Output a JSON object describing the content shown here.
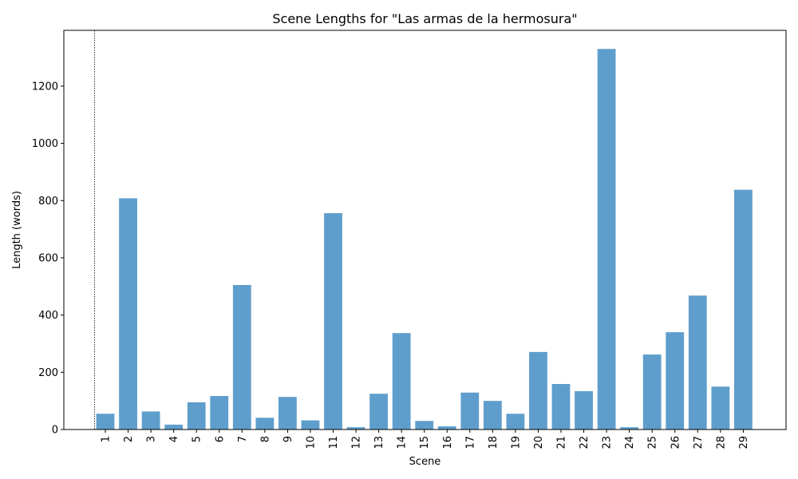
{
  "chart_data": {
    "type": "bar",
    "title": "Scene Lengths for \"Las armas de la hermosura\"",
    "xlabel": "Scene",
    "ylabel": "Length (words)",
    "categories": [
      "1",
      "2",
      "3",
      "4",
      "5",
      "6",
      "7",
      "8",
      "9",
      "10",
      "11",
      "12",
      "13",
      "14",
      "15",
      "16",
      "17",
      "18",
      "19",
      "20",
      "21",
      "22",
      "23",
      "24",
      "25",
      "26",
      "27",
      "28",
      "29"
    ],
    "values": [
      55,
      808,
      63,
      17,
      95,
      117,
      505,
      41,
      114,
      32,
      756,
      8,
      125,
      337,
      30,
      11,
      129,
      100,
      55,
      271,
      159,
      134,
      1330,
      8,
      262,
      340,
      468,
      150,
      838
    ],
    "ylim": [
      0,
      1395
    ],
    "yticks": [
      0,
      200,
      400,
      600,
      800,
      1000,
      1200
    ],
    "grid": false,
    "legend": "none",
    "bar_color": "#5f9ecc",
    "reference_line": {
      "style": "dotted-vertical",
      "position": "left of first bar"
    }
  }
}
